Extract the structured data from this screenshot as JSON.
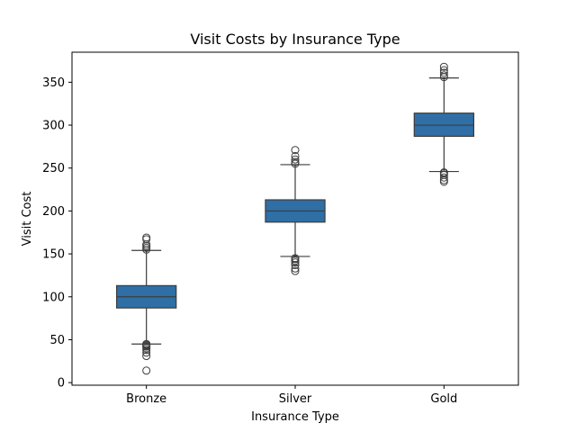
{
  "chart_data": {
    "type": "box",
    "title": "Visit Costs by Insurance Type",
    "xlabel": "Insurance Type",
    "ylabel": "Visit Cost",
    "ylim": [
      -3,
      385
    ],
    "yticks": [
      0,
      50,
      100,
      150,
      200,
      250,
      300,
      350
    ],
    "categories": [
      "Bronze",
      "Silver",
      "Gold"
    ],
    "color": "#2f6fa6",
    "line_color": "#3d3d3d",
    "boxes": [
      {
        "category": "Bronze",
        "whisker_low": 45,
        "q1": 87,
        "median": 100,
        "q3": 113,
        "whisker_high": 154,
        "outliers": [
          14,
          31,
          35,
          38,
          40,
          42,
          43,
          44,
          45,
          155,
          157,
          159,
          161,
          167,
          169
        ]
      },
      {
        "category": "Silver",
        "whisker_low": 147,
        "q1": 187,
        "median": 200,
        "q3": 213,
        "whisker_high": 254,
        "outliers": [
          130,
          133,
          137,
          140,
          142,
          144,
          145,
          255,
          257,
          260,
          264,
          271
        ]
      },
      {
        "category": "Gold",
        "whisker_low": 246,
        "q1": 287,
        "median": 300,
        "q3": 314,
        "whisker_high": 355,
        "outliers": [
          234,
          236,
          239,
          242,
          244,
          245,
          356,
          358,
          361,
          364,
          368
        ]
      }
    ]
  }
}
